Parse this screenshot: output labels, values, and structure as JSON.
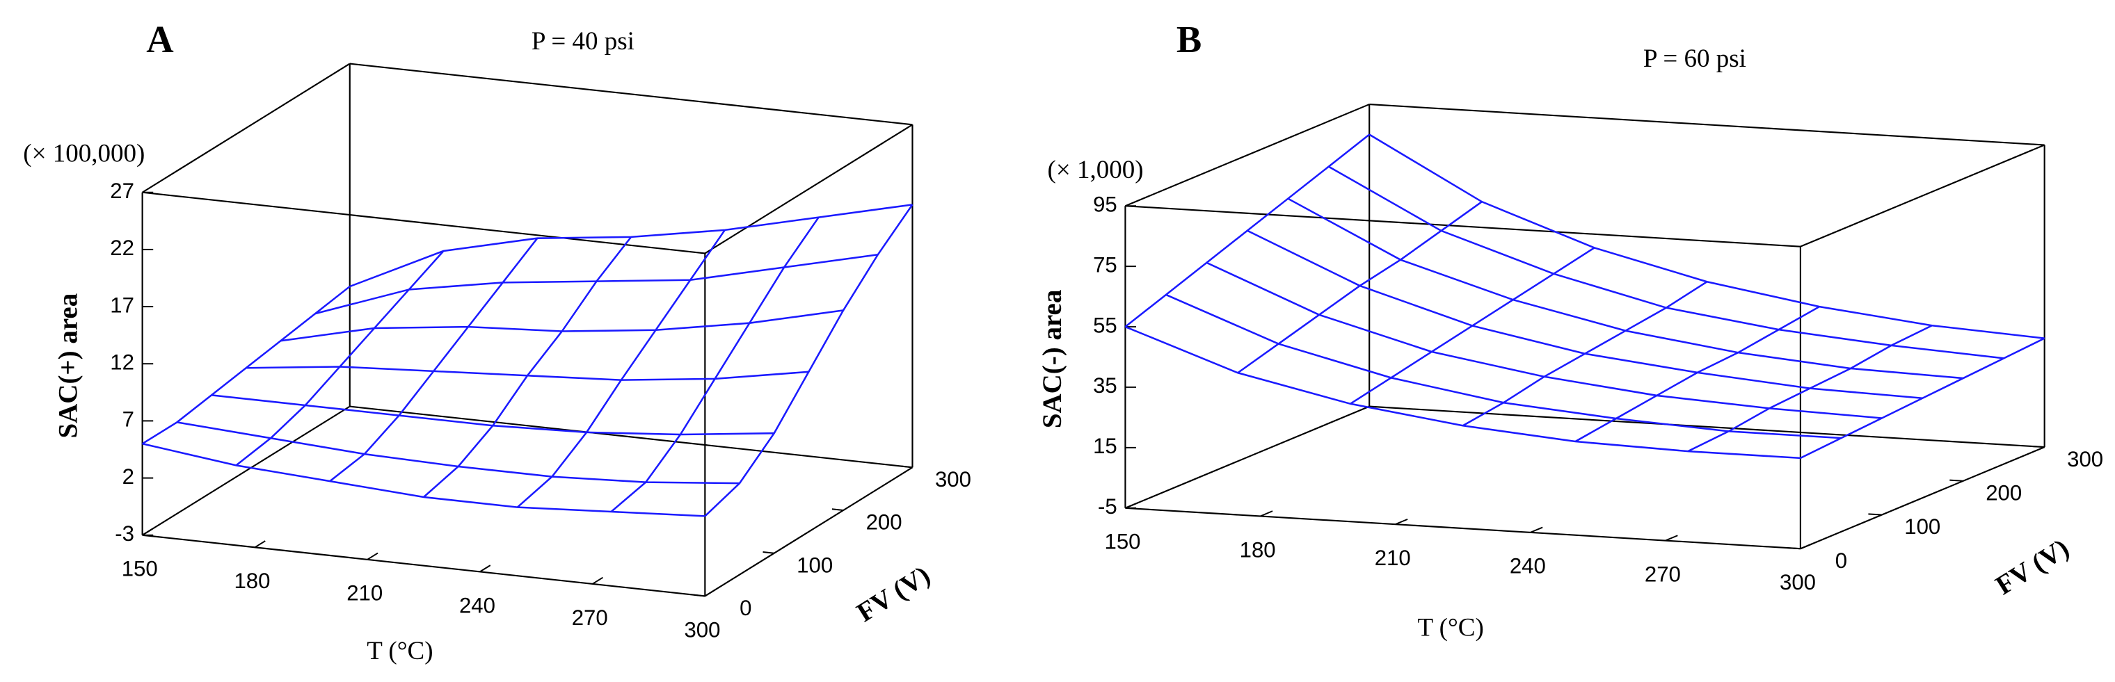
{
  "chart_data": [
    {
      "type": "surface",
      "panel_label": "A",
      "title": "P = 40 psi",
      "x_label": "T (°C)",
      "y_label": "FV (V)",
      "z_label": "SAC(+) area",
      "z_multiplier_label": "(× 100,000)",
      "x": [
        150,
        175,
        200,
        225,
        250,
        275,
        300
      ],
      "y": [
        0,
        50,
        100,
        150,
        200,
        250,
        300
      ],
      "z": [
        [
          5,
          4,
          3.5,
          3,
          3,
          3.5,
          4
        ],
        [
          5,
          4.5,
          4,
          3.8,
          3.8,
          4.2,
          5
        ],
        [
          5.5,
          5.5,
          5.5,
          5.5,
          5.8,
          6.5,
          7.5
        ],
        [
          6,
          7,
          7.5,
          8,
          8.5,
          9.5,
          11
        ],
        [
          6.5,
          8.5,
          9.5,
          10,
          11,
          12.5,
          14.5
        ],
        [
          7,
          10,
          11.5,
          12.5,
          13.5,
          15.5,
          17.5
        ],
        [
          7.5,
          11.5,
          13.5,
          14.5,
          16,
          18,
          20
        ]
      ],
      "xlim": [
        150,
        300
      ],
      "ylim": [
        0,
        300
      ],
      "zlim": [
        -3,
        27
      ],
      "xticks": [
        150,
        180,
        210,
        240,
        270,
        300
      ],
      "yticks": [
        0,
        100,
        200,
        300
      ],
      "zticks": [
        -3,
        2,
        7,
        12,
        17,
        22,
        27
      ],
      "color": "#1a1aff"
    },
    {
      "type": "surface",
      "panel_label": "B",
      "title": "P = 60 psi",
      "x_label": "T (°C)",
      "y_label": "FV (V)",
      "z_label": "SAC(-) area",
      "z_multiplier_label": "(× 1,000)",
      "x": [
        150,
        175,
        200,
        225,
        250,
        275,
        300
      ],
      "y": [
        0,
        50,
        100,
        150,
        200,
        250,
        300
      ],
      "z": [
        [
          55,
          42,
          34,
          29,
          26,
          25,
          25
        ],
        [
          60,
          46,
          37,
          31,
          28,
          26,
          26
        ],
        [
          65,
          50,
          40,
          34,
          30,
          28,
          27
        ],
        [
          70,
          54,
          43,
          36,
          32,
          29,
          28
        ],
        [
          75,
          57,
          46,
          38,
          33,
          30,
          29
        ],
        [
          80,
          61,
          49,
          40,
          35,
          32,
          30
        ],
        [
          85,
          65,
          52,
          43,
          37,
          33,
          31
        ]
      ],
      "xlim": [
        150,
        300
      ],
      "ylim": [
        0,
        300
      ],
      "zlim": [
        -5,
        95
      ],
      "xticks": [
        150,
        180,
        210,
        240,
        270,
        300
      ],
      "yticks": [
        0,
        100,
        200,
        300
      ],
      "zticks": [
        -5,
        15,
        35,
        55,
        75,
        95
      ],
      "color": "#1a1aff"
    }
  ]
}
